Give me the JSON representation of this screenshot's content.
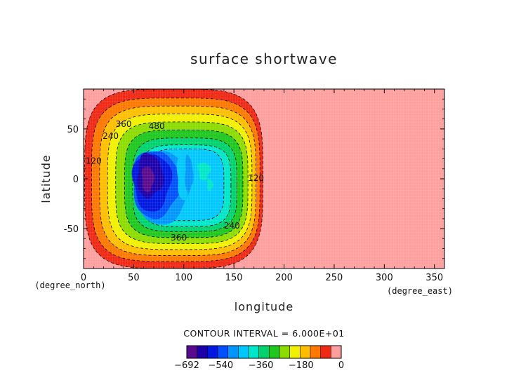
{
  "chart_data": {
    "type": "heatmap",
    "title": "surface shortwave",
    "xlabel": "longitude",
    "ylabel": "latitude",
    "x_unit": "(degree_east)",
    "y_unit": "(degree_north)",
    "xlim": [
      0,
      360
    ],
    "ylim": [
      -90,
      90
    ],
    "x_ticks": [
      0,
      50,
      100,
      150,
      200,
      250,
      300,
      350
    ],
    "y_ticks": [
      -50,
      0,
      50
    ],
    "contour_interval_text": "CONTOUR INTERVAL = 6.000E+01",
    "contour_interval": 60,
    "minimum_level": -692,
    "maximum_level": 0,
    "center": {
      "lon": 75,
      "lat": -5
    },
    "contour_labels": [
      {
        "text": "120",
        "lon": 10,
        "lat": 15
      },
      {
        "text": "240",
        "lon": 27,
        "lat": 40
      },
      {
        "text": "360",
        "lon": 40,
        "lat": 52
      },
      {
        "text": "480",
        "lon": 73,
        "lat": 50
      },
      {
        "text": "120",
        "lon": 172,
        "lat": -2
      },
      {
        "text": "240",
        "lon": 148,
        "lat": -50
      },
      {
        "text": "360",
        "lon": 95,
        "lat": -62
      }
    ],
    "colorbar": {
      "tick_labels": [
        "−692",
        "−540",
        "−360",
        "−180",
        "0"
      ],
      "tick_values": [
        -692,
        -540,
        -360,
        -180,
        0
      ],
      "colors": [
        "#5a0a8c",
        "#1c00aa",
        "#0018e0",
        "#0050ff",
        "#0096ff",
        "#00c8ff",
        "#00e6c8",
        "#00d26e",
        "#1ec81e",
        "#8cdc00",
        "#f0f000",
        "#ffbe00",
        "#ff7800",
        "#f02814",
        "#ff9e9e"
      ]
    }
  }
}
